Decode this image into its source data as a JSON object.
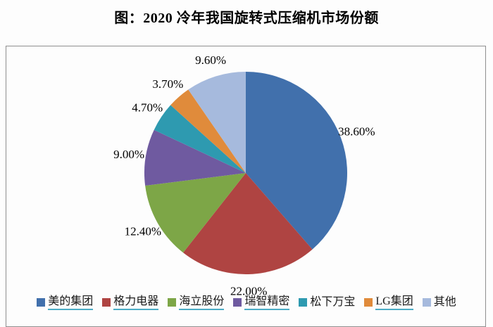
{
  "page": {
    "title": "图：2020 冷年我国旋转式压缩机市场份额"
  },
  "chart_data": {
    "type": "pie",
    "title": "图：2020 冷年我国旋转式压缩机市场份额",
    "start_angle_deg": 0,
    "direction": "clockwise",
    "legend_position": "bottom",
    "data_labels": "percent-outside-end",
    "slices": [
      {
        "label": "美的集团",
        "value": 38.6,
        "display": "38.60%",
        "color": "#4170AC",
        "legend_underline": true
      },
      {
        "label": "格力电器",
        "value": 22.0,
        "display": "22.00%",
        "color": "#AF4442",
        "legend_underline": true
      },
      {
        "label": "海立股份",
        "value": 12.4,
        "display": "12.40%",
        "color": "#7DA647",
        "legend_underline": true
      },
      {
        "label": "瑞智精密",
        "value": 9.0,
        "display": "9.00%",
        "color": "#6F5AA0",
        "legend_underline": true
      },
      {
        "label": "松下万宝",
        "value": 4.7,
        "display": "4.70%",
        "color": "#2E9AB0",
        "legend_underline": false
      },
      {
        "label": "LG集团",
        "value": 3.7,
        "display": "3.70%",
        "color": "#E08B3B",
        "legend_underline": true
      },
      {
        "label": "其他",
        "value": 9.6,
        "display": "9.60%",
        "color": "#A6BADD",
        "legend_underline": false
      }
    ],
    "legend_underline_color": "#4BACC6",
    "frame_border_color": "#8F8F8F"
  }
}
